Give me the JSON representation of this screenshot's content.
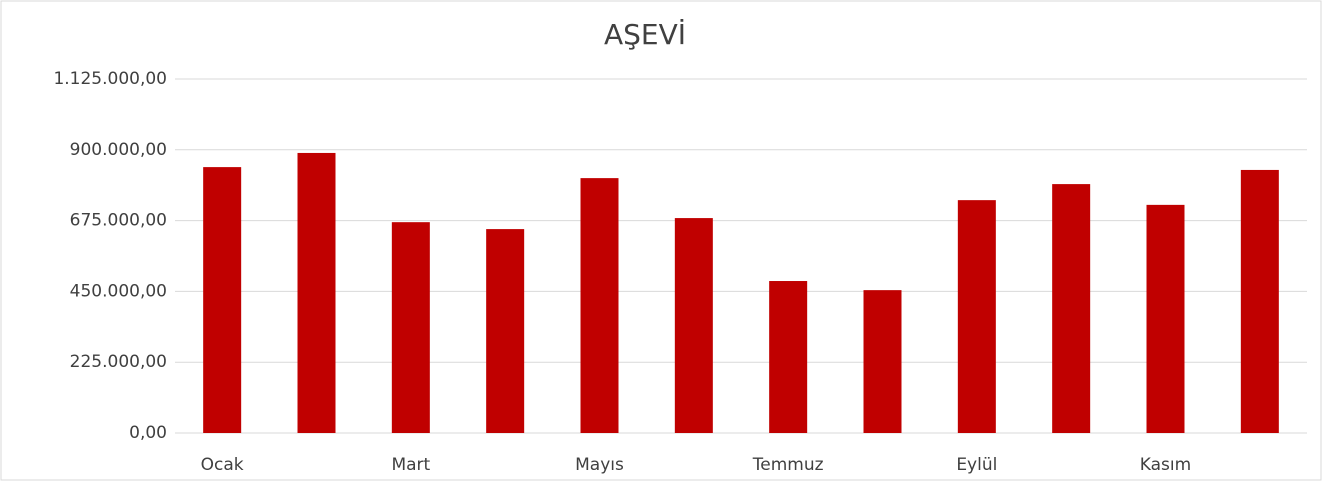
{
  "chart_data": {
    "type": "bar",
    "title": "AŞEVİ",
    "categories": [
      "Ocak",
      null,
      "Mart",
      null,
      "Mayıs",
      null,
      "Temmuz",
      null,
      "Eylül",
      null,
      "Kasım",
      null
    ],
    "values": [
      845000,
      890000,
      670000,
      648000,
      810000,
      683000,
      483000,
      454000,
      740000,
      791000,
      725000,
      836000
    ],
    "color": "#c00000",
    "ylim": [
      0,
      1125000
    ],
    "yticks": [
      {
        "value": 0,
        "label": "0,00"
      },
      {
        "value": 225000,
        "label": "225.000,00"
      },
      {
        "value": 450000,
        "label": "450.000,00"
      },
      {
        "value": 675000,
        "label": "675.000,00"
      },
      {
        "value": 900000,
        "label": "900.000,00"
      },
      {
        "value": 1125000,
        "label": "1.125.000,00"
      }
    ],
    "grid": true
  }
}
